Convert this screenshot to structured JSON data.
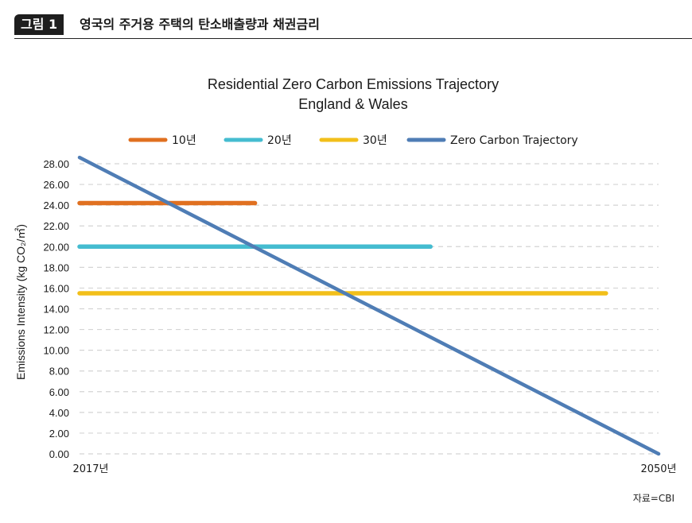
{
  "figure": {
    "badge": "그림 1",
    "title": "영국의 주거용 주택의 탄소배출량과 채권금리",
    "source": "자료=CBI"
  },
  "chart_data": {
    "type": "line",
    "title": "Residential Zero Carbon Emissions Trajectory",
    "subtitle": "England & Wales",
    "xlabel": "",
    "ylabel": "Emissions Intensity (kg CO₂/㎡)",
    "x_tick_labels": [
      "2017년",
      "2050년"
    ],
    "xlim": [
      2017,
      2050
    ],
    "ylim": [
      0,
      28
    ],
    "y_ticks": [
      "0.00",
      "2.00",
      "4.00",
      "6.00",
      "8.00",
      "10.00",
      "12.00",
      "14.00",
      "16.00",
      "18.00",
      "20.00",
      "22.00",
      "24.00",
      "26.00",
      "28.00"
    ],
    "grid": "horizontal dashed",
    "legend_position": "top",
    "series": [
      {
        "name": "10년",
        "color": "#e07020",
        "x": [
          2017,
          2027
        ],
        "y": [
          24.2,
          24.2
        ]
      },
      {
        "name": "20년",
        "color": "#45bcd0",
        "x": [
          2017,
          2037
        ],
        "y": [
          20.0,
          20.0
        ]
      },
      {
        "name": "30년",
        "color": "#f2bf1a",
        "x": [
          2017,
          2047
        ],
        "y": [
          15.5,
          15.5
        ]
      },
      {
        "name": "Zero Carbon Trajectory",
        "color": "#4f7db5",
        "x": [
          2017,
          2050
        ],
        "y": [
          28.6,
          0.0
        ]
      }
    ]
  }
}
